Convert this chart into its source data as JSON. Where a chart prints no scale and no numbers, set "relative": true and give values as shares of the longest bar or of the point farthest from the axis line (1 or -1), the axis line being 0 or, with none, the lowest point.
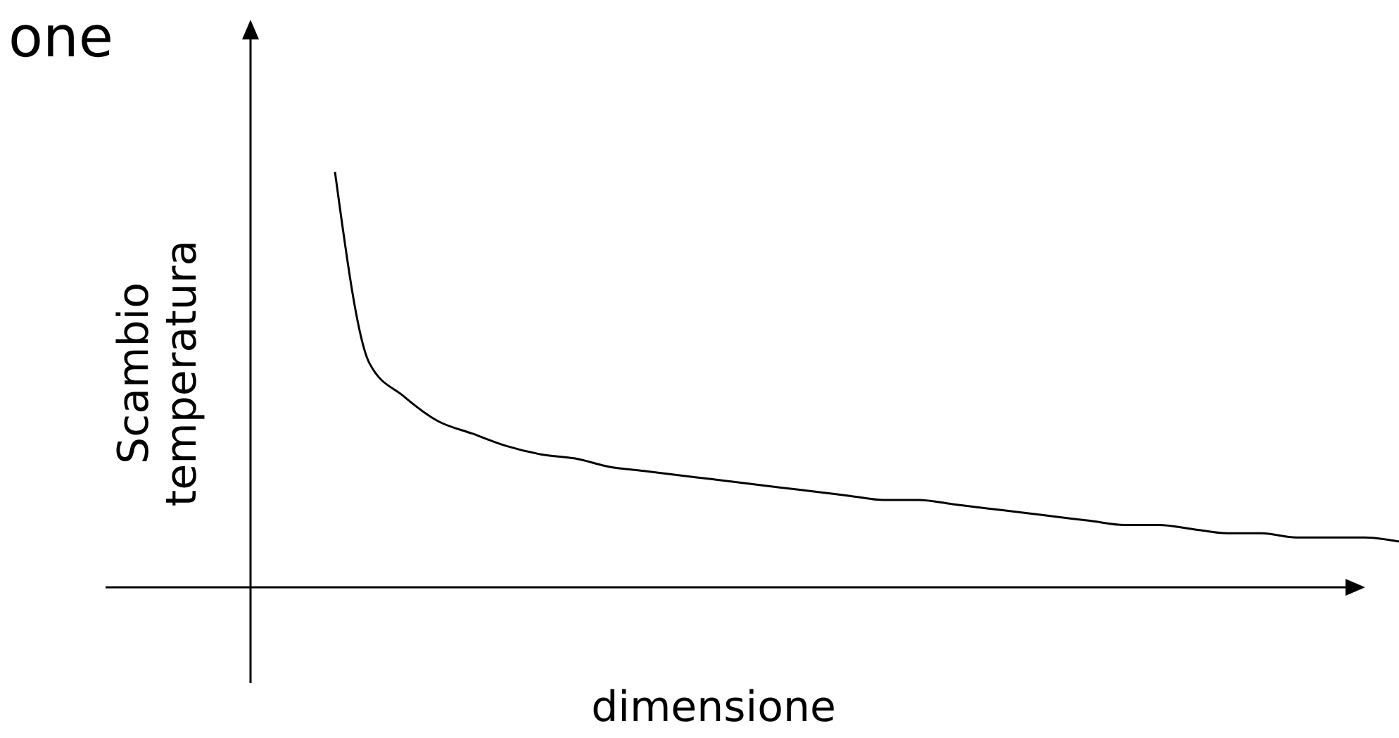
{
  "chart_data": {
    "type": "line",
    "title": "one",
    "xlabel": "dimensione",
    "ylabel": "Scambio\ntemperatura",
    "relative": true,
    "color": "#000000",
    "categories": [
      null,
      null,
      null,
      null,
      null,
      null,
      null,
      null,
      null,
      null,
      null,
      null,
      null,
      null,
      null,
      null,
      null,
      null,
      null,
      null,
      null,
      null,
      null,
      null,
      null,
      null,
      null,
      null,
      null,
      null,
      null,
      null
    ],
    "values": [
      1.0,
      0.54,
      0.46,
      0.4,
      0.37,
      0.34,
      0.32,
      0.31,
      0.29,
      0.28,
      0.27,
      0.26,
      0.25,
      0.24,
      0.23,
      0.22,
      0.21,
      0.21,
      0.2,
      0.19,
      0.18,
      0.17,
      0.16,
      0.15,
      0.15,
      0.14,
      0.13,
      0.13,
      0.12,
      0.12,
      0.12,
      0.11
    ]
  }
}
